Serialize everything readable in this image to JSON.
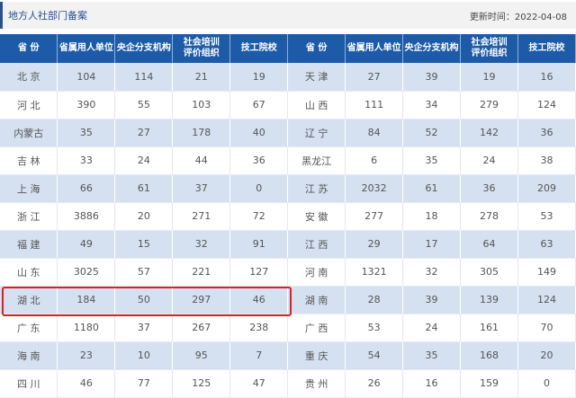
{
  "header": {
    "title": "地方人社部门备案",
    "updated": "更新时间：2022-04-08"
  },
  "columns": [
    "省 份",
    "省属用人单位",
    "央企分支机构",
    "社会培训\n评价组织",
    "技工院校",
    "省 份",
    "省属用人单位",
    "央企分支机构",
    "社会培训\n评价组织",
    "技工院校"
  ],
  "rows": [
    [
      "北 京",
      "104",
      "114",
      "21",
      "19",
      "天 津",
      "27",
      "39",
      "19",
      "16"
    ],
    [
      "河 北",
      "390",
      "55",
      "103",
      "67",
      "山 西",
      "111",
      "34",
      "279",
      "124"
    ],
    [
      "内蒙古",
      "35",
      "27",
      "178",
      "40",
      "辽 宁",
      "84",
      "52",
      "142",
      "36"
    ],
    [
      "吉 林",
      "33",
      "24",
      "44",
      "36",
      "黑龙江",
      "6",
      "35",
      "24",
      "38"
    ],
    [
      "上 海",
      "66",
      "61",
      "37",
      "0",
      "江 苏",
      "2032",
      "61",
      "36",
      "209"
    ],
    [
      "浙 江",
      "3886",
      "20",
      "271",
      "72",
      "安 徽",
      "277",
      "18",
      "278",
      "53"
    ],
    [
      "福 建",
      "49",
      "15",
      "32",
      "91",
      "江 西",
      "29",
      "17",
      "64",
      "63"
    ],
    [
      "山 东",
      "3025",
      "57",
      "221",
      "127",
      "河 南",
      "1321",
      "32",
      "305",
      "149"
    ],
    [
      "湖 北",
      "184",
      "50",
      "297",
      "46",
      "湖 南",
      "28",
      "39",
      "139",
      "124"
    ],
    [
      "广 东",
      "1180",
      "37",
      "267",
      "238",
      "广 西",
      "53",
      "24",
      "161",
      "70"
    ],
    [
      "海 南",
      "23",
      "10",
      "95",
      "7",
      "重 庆",
      "54",
      "35",
      "168",
      "20"
    ],
    [
      "四 川",
      "46",
      "77",
      "125",
      "47",
      "贵 州",
      "26",
      "16",
      "159",
      "0"
    ]
  ],
  "highlight": {
    "row": "湖 北",
    "color": "#e02020"
  },
  "colors": {
    "header": "#1d5ba8",
    "stripe": "#d5e1f1"
  }
}
